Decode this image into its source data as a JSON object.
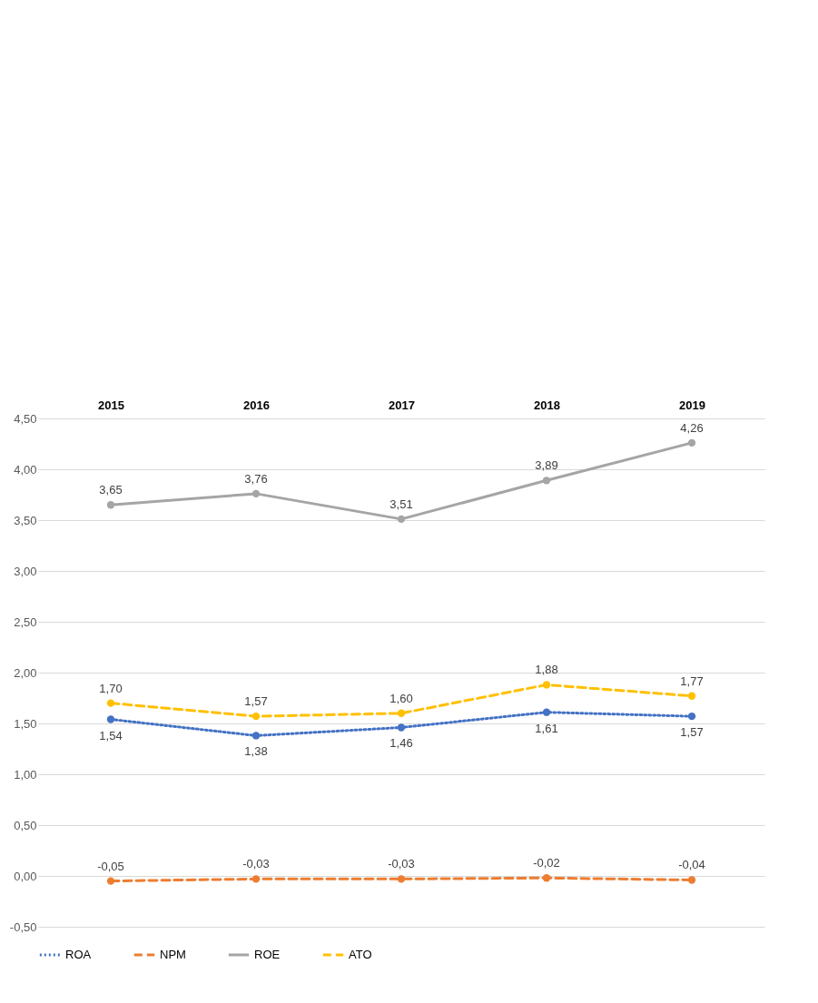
{
  "chart_data": {
    "type": "line",
    "categories": [
      "2015",
      "2016",
      "2017",
      "2018",
      "2019"
    ],
    "series": [
      {
        "name": "ROA",
        "color": "#4472c4",
        "line_style": "dotted",
        "values": [
          1.54,
          1.38,
          1.46,
          1.61,
          1.57
        ],
        "value_labels": [
          "1,54",
          "1,38",
          "1,46",
          "1,61",
          "1,57"
        ]
      },
      {
        "name": "NPM",
        "color": "#ed7d31",
        "line_style": "dashed",
        "values": [
          -0.05,
          -0.03,
          -0.03,
          -0.02,
          -0.04
        ],
        "value_labels": [
          "-0,05",
          "-0,03",
          "-0,03",
          "-0,02",
          "-0,04"
        ]
      },
      {
        "name": "ROE",
        "color": "#a5a5a5",
        "line_style": "solid",
        "values": [
          3.65,
          3.76,
          3.51,
          3.89,
          4.26
        ],
        "value_labels": [
          "3,65",
          "3,76",
          "3,51",
          "3,89",
          "4,26"
        ]
      },
      {
        "name": "ATO",
        "color": "#ffc000",
        "line_style": "dashed",
        "values": [
          1.7,
          1.57,
          1.6,
          1.88,
          1.77
        ],
        "value_labels": [
          "1,70",
          "1,57",
          "1,60",
          "1,88",
          "1,77"
        ]
      }
    ],
    "ylim": [
      -0.5,
      4.5
    ],
    "yticks": [
      {
        "value": -0.5,
        "label": "-0,50"
      },
      {
        "value": 0,
        "label": "0,00"
      },
      {
        "value": 0.5,
        "label": "0,50"
      },
      {
        "value": 1,
        "label": "1,00"
      },
      {
        "value": 1.5,
        "label": "1,50"
      },
      {
        "value": 2,
        "label": "2,00"
      },
      {
        "value": 2.5,
        "label": "2,50"
      },
      {
        "value": 3,
        "label": "3,00"
      },
      {
        "value": 3.5,
        "label": "3,50"
      },
      {
        "value": 4,
        "label": "4,00"
      },
      {
        "value": 4.5,
        "label": "4,50"
      }
    ],
    "grid": "y",
    "legend": "bottom",
    "marker": "circle"
  }
}
